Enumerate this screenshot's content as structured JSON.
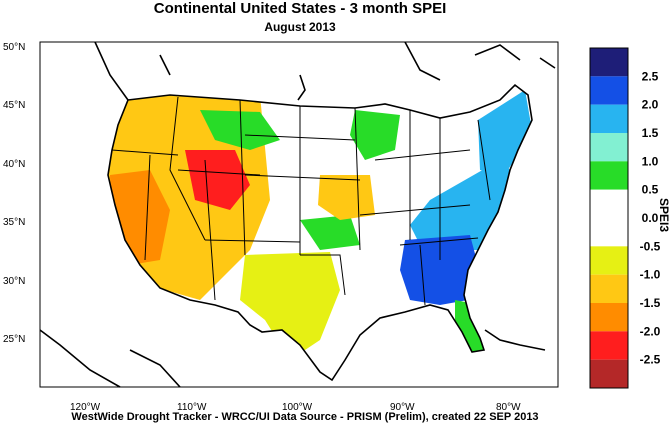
{
  "title": "Continental United States - 3 month SPEI",
  "subtitle": "August 2013",
  "footer": "WestWide Drought Tracker - WRCC/UI  Data Source - PRISM (Prelim), created 22 SEP 2013",
  "axes": {
    "lat_labels": [
      "50°N",
      "45°N",
      "40°N",
      "35°N",
      "30°N",
      "25°N"
    ],
    "lon_labels": [
      "120°W",
      "110°W",
      "100°W",
      "90°W",
      "80°W"
    ]
  },
  "colorbar": {
    "title": "SPEI3",
    "labels": [
      "2.5",
      "2.0",
      "1.5",
      "1.0",
      "0.5",
      "0.0",
      "-0.5",
      "-1.0",
      "-1.5",
      "-2.0",
      "-2.5"
    ],
    "colors": [
      "#1e1e78",
      "#1450e6",
      "#28b4f0",
      "#82f0d2",
      "#28dc28",
      "#ffffff",
      "#ffffff",
      "#e6f014",
      "#ffc814",
      "#ff8c00",
      "#ff1e1e",
      "#b42828"
    ]
  },
  "regions": [
    {
      "name": "west-dry",
      "color": "#ffc814"
    },
    {
      "name": "west-very-dry",
      "color": "#ff8c00"
    },
    {
      "name": "great-basin-severe",
      "color": "#ff1e1e"
    },
    {
      "name": "plains-wet",
      "color": "#28dc28"
    },
    {
      "name": "southeast-very-wet",
      "color": "#1450e6"
    },
    {
      "name": "southeast-wet",
      "color": "#28b4f0"
    },
    {
      "name": "texas-dry",
      "color": "#e6f014"
    }
  ]
}
